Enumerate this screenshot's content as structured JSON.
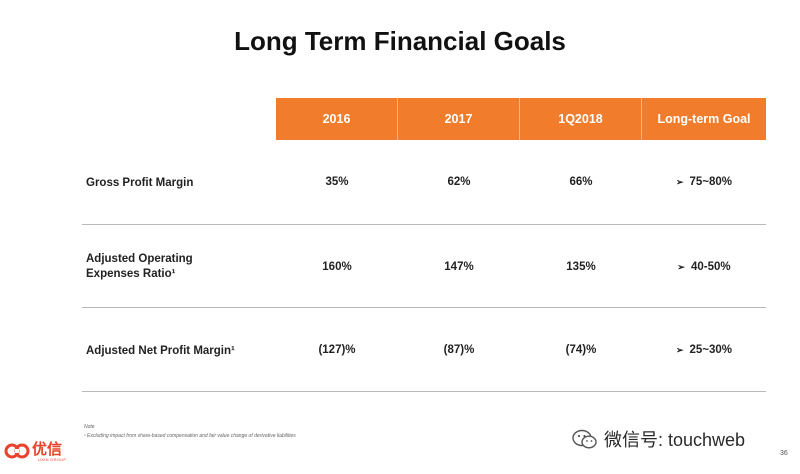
{
  "title": "Long Term Financial Goals",
  "table": {
    "headers": [
      "2016",
      "2017",
      "1Q2018",
      "Long-term Goal"
    ],
    "rows": [
      {
        "label_line1": "Gross Profit Margin",
        "label_line2": "",
        "values": [
          "35%",
          "62%",
          "66%",
          "75~80%"
        ]
      },
      {
        "label_line1": "Adjusted Operating",
        "label_line2": "Expenses Ratio¹",
        "values": [
          "160%",
          "147%",
          "135%",
          "40-50%"
        ]
      },
      {
        "label_line1": "Adjusted Net Profit Margin¹",
        "label_line2": "",
        "values": [
          "(127)%",
          "(87)%",
          "(74)%",
          "25~30%"
        ]
      }
    ],
    "goal_marker": "➢"
  },
  "footnote": {
    "label": "Note",
    "text": "¹ Excluding impact from share-based compensation and fair value change of derivative liabilities"
  },
  "logo": {
    "chars": "优信",
    "subtitle": "UXIN GROUP"
  },
  "watermark": {
    "text": "微信号: touchweb"
  },
  "page_number": "36",
  "colors": {
    "header_bg": "#f07c2c",
    "logo": "#e8432c"
  }
}
